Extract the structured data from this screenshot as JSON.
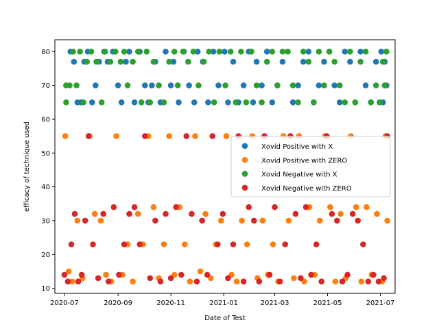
{
  "chart_data": {
    "type": "scatter",
    "title": "",
    "xlabel": "Date of Test",
    "ylabel": "efficacy of technique used",
    "xlim": [
      "2020-06-20",
      "2021-07-18"
    ],
    "ylim": [
      8.5,
      83.5
    ],
    "x_ticks": [
      "2020-07-01",
      "2020-09-01",
      "2020-11-01",
      "2021-01-01",
      "2021-03-01",
      "2021-05-01",
      "2021-07-01"
    ],
    "x_tick_labels": [
      "2020-07",
      "2020-09",
      "2020-11",
      "2021-01",
      "2021-03",
      "2021-05",
      "2021-07"
    ],
    "y_ticks": [
      10,
      20,
      30,
      40,
      50,
      60,
      70,
      80
    ],
    "grid": false,
    "legend_position": "center-right",
    "series": [
      {
        "name": "Xovid Positive with X",
        "color": "#1f77b4",
        "points": [
          [
            "2020-07-08",
            80
          ],
          [
            "2020-07-12",
            77
          ],
          [
            "2020-07-16",
            65
          ],
          [
            "2020-07-20",
            65
          ],
          [
            "2020-07-24",
            77
          ],
          [
            "2020-07-28",
            80
          ],
          [
            "2020-08-02",
            65
          ],
          [
            "2020-08-06",
            70
          ],
          [
            "2020-08-10",
            77
          ],
          [
            "2020-08-16",
            80
          ],
          [
            "2020-08-20",
            77
          ],
          [
            "2020-08-26",
            80
          ],
          [
            "2020-09-01",
            70
          ],
          [
            "2020-09-05",
            65
          ],
          [
            "2020-09-10",
            77
          ],
          [
            "2020-09-14",
            80
          ],
          [
            "2020-09-20",
            65
          ],
          [
            "2020-09-26",
            80
          ],
          [
            "2020-10-02",
            70
          ],
          [
            "2020-10-06",
            65
          ],
          [
            "2020-10-10",
            70
          ],
          [
            "2020-10-14",
            77
          ],
          [
            "2020-10-20",
            65
          ],
          [
            "2020-10-26",
            80
          ],
          [
            "2020-11-01",
            70
          ],
          [
            "2020-11-04",
            77
          ],
          [
            "2020-11-10",
            65
          ],
          [
            "2020-11-16",
            80
          ],
          [
            "2020-11-22",
            70
          ],
          [
            "2020-11-28",
            65
          ],
          [
            "2020-12-02",
            80
          ],
          [
            "2020-12-08",
            77
          ],
          [
            "2020-12-14",
            65
          ],
          [
            "2020-12-20",
            80
          ],
          [
            "2020-12-26",
            70
          ],
          [
            "2021-01-02",
            80
          ],
          [
            "2021-01-06",
            65
          ],
          [
            "2021-01-12",
            77
          ],
          [
            "2021-01-18",
            65
          ],
          [
            "2021-01-24",
            70
          ],
          [
            "2021-01-30",
            80
          ],
          [
            "2021-02-04",
            65
          ],
          [
            "2021-02-08",
            77
          ],
          [
            "2021-02-14",
            70
          ],
          [
            "2021-02-20",
            80
          ],
          [
            "2021-02-26",
            65
          ],
          [
            "2021-03-04",
            70
          ],
          [
            "2021-03-10",
            77
          ],
          [
            "2021-03-16",
            80
          ],
          [
            "2021-03-22",
            65
          ],
          [
            "2021-03-28",
            70
          ],
          [
            "2021-04-03",
            77
          ],
          [
            "2021-04-09",
            80
          ],
          [
            "2021-04-15",
            65
          ],
          [
            "2021-04-21",
            70
          ],
          [
            "2021-04-27",
            77
          ],
          [
            "2021-05-03",
            80
          ],
          [
            "2021-05-09",
            70
          ],
          [
            "2021-05-15",
            65
          ],
          [
            "2021-05-21",
            80
          ],
          [
            "2021-05-27",
            77
          ],
          [
            "2021-06-02",
            65
          ],
          [
            "2021-06-08",
            80
          ],
          [
            "2021-06-14",
            70
          ],
          [
            "2021-06-20",
            65
          ],
          [
            "2021-06-26",
            77
          ],
          [
            "2021-07-02",
            80
          ],
          [
            "2021-07-06",
            77
          ],
          [
            "2021-07-08",
            70
          ],
          [
            "2021-07-04",
            65
          ]
        ]
      },
      {
        "name": "Xovid Positive with ZERO",
        "color": "#ff7f0e",
        "points": [
          [
            "2020-07-02",
            55
          ],
          [
            "2020-07-06",
            15
          ],
          [
            "2020-07-10",
            12
          ],
          [
            "2020-07-16",
            30
          ],
          [
            "2020-07-22",
            13
          ],
          [
            "2020-07-30",
            55
          ],
          [
            "2020-08-05",
            32
          ],
          [
            "2020-08-12",
            30
          ],
          [
            "2020-08-18",
            14
          ],
          [
            "2020-08-24",
            12
          ],
          [
            "2020-08-30",
            55
          ],
          [
            "2020-09-06",
            14
          ],
          [
            "2020-09-12",
            23
          ],
          [
            "2020-09-18",
            12
          ],
          [
            "2020-09-24",
            32
          ],
          [
            "2020-09-30",
            23
          ],
          [
            "2020-10-06",
            55
          ],
          [
            "2020-10-12",
            34
          ],
          [
            "2020-10-18",
            13
          ],
          [
            "2020-10-24",
            23
          ],
          [
            "2020-10-30",
            55
          ],
          [
            "2020-11-05",
            14
          ],
          [
            "2020-11-11",
            34
          ],
          [
            "2020-11-17",
            23
          ],
          [
            "2020-11-23",
            12
          ],
          [
            "2020-11-29",
            55
          ],
          [
            "2020-12-05",
            15
          ],
          [
            "2020-12-11",
            32
          ],
          [
            "2020-12-17",
            13
          ],
          [
            "2020-12-23",
            23
          ],
          [
            "2020-12-29",
            30
          ],
          [
            "2021-01-04",
            55
          ],
          [
            "2021-01-10",
            14
          ],
          [
            "2021-01-16",
            12
          ],
          [
            "2021-01-22",
            30
          ],
          [
            "2021-01-28",
            23
          ],
          [
            "2021-02-03",
            55
          ],
          [
            "2021-02-09",
            13
          ],
          [
            "2021-02-15",
            30
          ],
          [
            "2021-02-21",
            14
          ],
          [
            "2021-02-27",
            23
          ],
          [
            "2021-03-05",
            12
          ],
          [
            "2021-03-11",
            55
          ],
          [
            "2021-03-17",
            30
          ],
          [
            "2021-03-23",
            13
          ],
          [
            "2021-03-29",
            55
          ],
          [
            "2021-04-04",
            12
          ],
          [
            "2021-04-10",
            34
          ],
          [
            "2021-04-16",
            14
          ],
          [
            "2021-04-22",
            30
          ],
          [
            "2021-04-28",
            55
          ],
          [
            "2021-05-04",
            34
          ],
          [
            "2021-05-10",
            12
          ],
          [
            "2021-05-16",
            32
          ],
          [
            "2021-05-22",
            13
          ],
          [
            "2021-05-28",
            55
          ],
          [
            "2021-06-03",
            34
          ],
          [
            "2021-06-09",
            12
          ],
          [
            "2021-06-15",
            34
          ],
          [
            "2021-06-21",
            14
          ],
          [
            "2021-06-27",
            32
          ],
          [
            "2021-07-03",
            12
          ],
          [
            "2021-07-09",
            30
          ],
          [
            "2021-07-07",
            55
          ]
        ]
      },
      {
        "name": "Xovid Negative with X",
        "color": "#2ca02c",
        "points": [
          [
            "2020-07-03",
            70
          ],
          [
            "2020-07-03",
            65
          ],
          [
            "2020-07-07",
            70
          ],
          [
            "2020-07-11",
            80
          ],
          [
            "2020-07-15",
            70
          ],
          [
            "2020-07-19",
            80
          ],
          [
            "2020-07-23",
            65
          ],
          [
            "2020-07-27",
            77
          ],
          [
            "2020-08-01",
            80
          ],
          [
            "2020-08-07",
            77
          ],
          [
            "2020-08-13",
            65
          ],
          [
            "2020-08-17",
            80
          ],
          [
            "2020-08-23",
            77
          ],
          [
            "2020-08-29",
            80
          ],
          [
            "2020-09-04",
            77
          ],
          [
            "2020-09-08",
            80
          ],
          [
            "2020-09-12",
            70
          ],
          [
            "2020-09-18",
            77
          ],
          [
            "2020-09-24",
            80
          ],
          [
            "2020-09-28",
            65
          ],
          [
            "2020-10-04",
            80
          ],
          [
            "2020-10-08",
            65
          ],
          [
            "2020-10-12",
            77
          ],
          [
            "2020-10-18",
            70
          ],
          [
            "2020-10-24",
            65
          ],
          [
            "2020-10-30",
            77
          ],
          [
            "2020-11-05",
            80
          ],
          [
            "2020-11-09",
            70
          ],
          [
            "2020-11-15",
            80
          ],
          [
            "2020-11-21",
            77
          ],
          [
            "2020-11-27",
            80
          ],
          [
            "2020-12-03",
            70
          ],
          [
            "2020-12-09",
            77
          ],
          [
            "2020-12-15",
            80
          ],
          [
            "2020-12-21",
            65
          ],
          [
            "2020-12-27",
            80
          ],
          [
            "2021-01-03",
            70
          ],
          [
            "2021-01-09",
            80
          ],
          [
            "2021-01-15",
            65
          ],
          [
            "2021-01-21",
            80
          ],
          [
            "2021-01-27",
            65
          ],
          [
            "2021-02-02",
            80
          ],
          [
            "2021-02-08",
            70
          ],
          [
            "2021-02-14",
            65
          ],
          [
            "2021-02-20",
            77
          ],
          [
            "2021-02-26",
            80
          ],
          [
            "2021-03-04",
            70
          ],
          [
            "2021-03-10",
            80
          ],
          [
            "2021-03-16",
            80
          ],
          [
            "2021-03-22",
            70
          ],
          [
            "2021-03-28",
            65
          ],
          [
            "2021-04-03",
            80
          ],
          [
            "2021-04-09",
            77
          ],
          [
            "2021-04-15",
            65
          ],
          [
            "2021-04-21",
            80
          ],
          [
            "2021-04-27",
            70
          ],
          [
            "2021-05-03",
            80
          ],
          [
            "2021-05-09",
            77
          ],
          [
            "2021-05-15",
            70
          ],
          [
            "2021-05-21",
            65
          ],
          [
            "2021-05-27",
            80
          ],
          [
            "2021-06-02",
            65
          ],
          [
            "2021-06-08",
            77
          ],
          [
            "2021-06-14",
            80
          ],
          [
            "2021-06-20",
            65
          ],
          [
            "2021-06-26",
            70
          ],
          [
            "2021-06-30",
            65
          ],
          [
            "2021-07-04",
            77
          ],
          [
            "2021-07-06",
            70
          ],
          [
            "2021-07-08",
            80
          ]
        ]
      },
      {
        "name": "Xovid Negative with ZERO",
        "color": "#d62728",
        "points": [
          [
            "2020-07-01",
            14
          ],
          [
            "2020-07-05",
            12
          ],
          [
            "2020-07-09",
            23
          ],
          [
            "2020-07-13",
            32
          ],
          [
            "2020-07-17",
            12
          ],
          [
            "2020-07-21",
            14
          ],
          [
            "2020-07-25",
            30
          ],
          [
            "2020-07-29",
            55
          ],
          [
            "2020-08-03",
            23
          ],
          [
            "2020-08-09",
            13
          ],
          [
            "2020-08-15",
            32
          ],
          [
            "2020-08-21",
            12
          ],
          [
            "2020-08-27",
            34
          ],
          [
            "2020-09-02",
            14
          ],
          [
            "2020-09-08",
            23
          ],
          [
            "2020-09-14",
            32
          ],
          [
            "2020-09-20",
            34
          ],
          [
            "2020-09-26",
            23
          ],
          [
            "2020-10-02",
            55
          ],
          [
            "2020-10-08",
            13
          ],
          [
            "2020-10-14",
            30
          ],
          [
            "2020-10-20",
            12
          ],
          [
            "2020-10-26",
            32
          ],
          [
            "2020-11-01",
            13
          ],
          [
            "2020-11-07",
            34
          ],
          [
            "2020-11-13",
            14
          ],
          [
            "2020-11-19",
            55
          ],
          [
            "2020-11-25",
            32
          ],
          [
            "2020-12-01",
            12
          ],
          [
            "2020-12-07",
            30
          ],
          [
            "2020-12-13",
            14
          ],
          [
            "2020-12-19",
            55
          ],
          [
            "2020-12-25",
            23
          ],
          [
            "2020-12-31",
            32
          ],
          [
            "2021-01-06",
            13
          ],
          [
            "2021-01-12",
            23
          ],
          [
            "2021-01-18",
            55
          ],
          [
            "2021-01-24",
            12
          ],
          [
            "2021-01-30",
            34
          ],
          [
            "2021-02-05",
            30
          ],
          [
            "2021-02-11",
            12
          ],
          [
            "2021-02-17",
            55
          ],
          [
            "2021-02-23",
            14
          ],
          [
            "2021-03-01",
            34
          ],
          [
            "2021-03-07",
            12
          ],
          [
            "2021-03-13",
            23
          ],
          [
            "2021-03-19",
            55
          ],
          [
            "2021-03-25",
            32
          ],
          [
            "2021-03-31",
            13
          ],
          [
            "2021-04-06",
            34
          ],
          [
            "2021-04-12",
            14
          ],
          [
            "2021-04-18",
            23
          ],
          [
            "2021-04-24",
            12
          ],
          [
            "2021-04-30",
            55
          ],
          [
            "2021-05-06",
            32
          ],
          [
            "2021-05-12",
            30
          ],
          [
            "2021-05-18",
            12
          ],
          [
            "2021-05-24",
            14
          ],
          [
            "2021-05-30",
            32
          ],
          [
            "2021-06-05",
            30
          ],
          [
            "2021-06-11",
            23
          ],
          [
            "2021-06-17",
            12
          ],
          [
            "2021-06-23",
            14
          ],
          [
            "2021-06-29",
            12
          ],
          [
            "2021-07-05",
            13
          ],
          [
            "2021-07-09",
            55
          ]
        ]
      }
    ]
  }
}
